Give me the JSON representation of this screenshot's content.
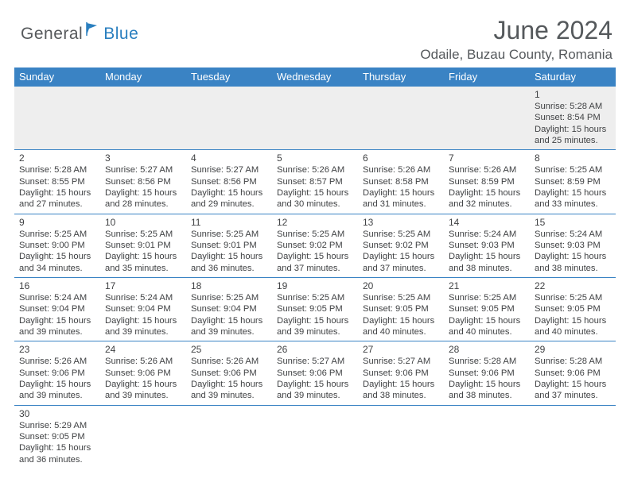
{
  "brand": {
    "part1": "General",
    "part2": "Blue"
  },
  "logo_colors": {
    "text1": "#56595c",
    "text2": "#2a7fbf",
    "flag": "#2a7fbf"
  },
  "title": "June 2024",
  "location": "Odaile, Buzau County, Romania",
  "header_bg": "#3a83c4",
  "header_fg": "#ffffff",
  "row_border": "#3a83c4",
  "first_week_bg": "#eeeeee",
  "text_color": "#404244",
  "weekdays": [
    "Sunday",
    "Monday",
    "Tuesday",
    "Wednesday",
    "Thursday",
    "Friday",
    "Saturday"
  ],
  "weeks": [
    [
      null,
      null,
      null,
      null,
      null,
      null,
      {
        "n": "1",
        "sr": "5:28 AM",
        "ss": "8:54 PM",
        "dl": "15 hours and 25 minutes."
      }
    ],
    [
      {
        "n": "2",
        "sr": "5:28 AM",
        "ss": "8:55 PM",
        "dl": "15 hours and 27 minutes."
      },
      {
        "n": "3",
        "sr": "5:27 AM",
        "ss": "8:56 PM",
        "dl": "15 hours and 28 minutes."
      },
      {
        "n": "4",
        "sr": "5:27 AM",
        "ss": "8:56 PM",
        "dl": "15 hours and 29 minutes."
      },
      {
        "n": "5",
        "sr": "5:26 AM",
        "ss": "8:57 PM",
        "dl": "15 hours and 30 minutes."
      },
      {
        "n": "6",
        "sr": "5:26 AM",
        "ss": "8:58 PM",
        "dl": "15 hours and 31 minutes."
      },
      {
        "n": "7",
        "sr": "5:26 AM",
        "ss": "8:59 PM",
        "dl": "15 hours and 32 minutes."
      },
      {
        "n": "8",
        "sr": "5:25 AM",
        "ss": "8:59 PM",
        "dl": "15 hours and 33 minutes."
      }
    ],
    [
      {
        "n": "9",
        "sr": "5:25 AM",
        "ss": "9:00 PM",
        "dl": "15 hours and 34 minutes."
      },
      {
        "n": "10",
        "sr": "5:25 AM",
        "ss": "9:01 PM",
        "dl": "15 hours and 35 minutes."
      },
      {
        "n": "11",
        "sr": "5:25 AM",
        "ss": "9:01 PM",
        "dl": "15 hours and 36 minutes."
      },
      {
        "n": "12",
        "sr": "5:25 AM",
        "ss": "9:02 PM",
        "dl": "15 hours and 37 minutes."
      },
      {
        "n": "13",
        "sr": "5:25 AM",
        "ss": "9:02 PM",
        "dl": "15 hours and 37 minutes."
      },
      {
        "n": "14",
        "sr": "5:24 AM",
        "ss": "9:03 PM",
        "dl": "15 hours and 38 minutes."
      },
      {
        "n": "15",
        "sr": "5:24 AM",
        "ss": "9:03 PM",
        "dl": "15 hours and 38 minutes."
      }
    ],
    [
      {
        "n": "16",
        "sr": "5:24 AM",
        "ss": "9:04 PM",
        "dl": "15 hours and 39 minutes."
      },
      {
        "n": "17",
        "sr": "5:24 AM",
        "ss": "9:04 PM",
        "dl": "15 hours and 39 minutes."
      },
      {
        "n": "18",
        "sr": "5:25 AM",
        "ss": "9:04 PM",
        "dl": "15 hours and 39 minutes."
      },
      {
        "n": "19",
        "sr": "5:25 AM",
        "ss": "9:05 PM",
        "dl": "15 hours and 39 minutes."
      },
      {
        "n": "20",
        "sr": "5:25 AM",
        "ss": "9:05 PM",
        "dl": "15 hours and 40 minutes."
      },
      {
        "n": "21",
        "sr": "5:25 AM",
        "ss": "9:05 PM",
        "dl": "15 hours and 40 minutes."
      },
      {
        "n": "22",
        "sr": "5:25 AM",
        "ss": "9:05 PM",
        "dl": "15 hours and 40 minutes."
      }
    ],
    [
      {
        "n": "23",
        "sr": "5:26 AM",
        "ss": "9:06 PM",
        "dl": "15 hours and 39 minutes."
      },
      {
        "n": "24",
        "sr": "5:26 AM",
        "ss": "9:06 PM",
        "dl": "15 hours and 39 minutes."
      },
      {
        "n": "25",
        "sr": "5:26 AM",
        "ss": "9:06 PM",
        "dl": "15 hours and 39 minutes."
      },
      {
        "n": "26",
        "sr": "5:27 AM",
        "ss": "9:06 PM",
        "dl": "15 hours and 39 minutes."
      },
      {
        "n": "27",
        "sr": "5:27 AM",
        "ss": "9:06 PM",
        "dl": "15 hours and 38 minutes."
      },
      {
        "n": "28",
        "sr": "5:28 AM",
        "ss": "9:06 PM",
        "dl": "15 hours and 38 minutes."
      },
      {
        "n": "29",
        "sr": "5:28 AM",
        "ss": "9:06 PM",
        "dl": "15 hours and 37 minutes."
      }
    ],
    [
      {
        "n": "30",
        "sr": "5:29 AM",
        "ss": "9:05 PM",
        "dl": "15 hours and 36 minutes."
      },
      null,
      null,
      null,
      null,
      null,
      null
    ]
  ],
  "labels": {
    "sunrise": "Sunrise:",
    "sunset": "Sunset:",
    "daylight": "Daylight:"
  }
}
